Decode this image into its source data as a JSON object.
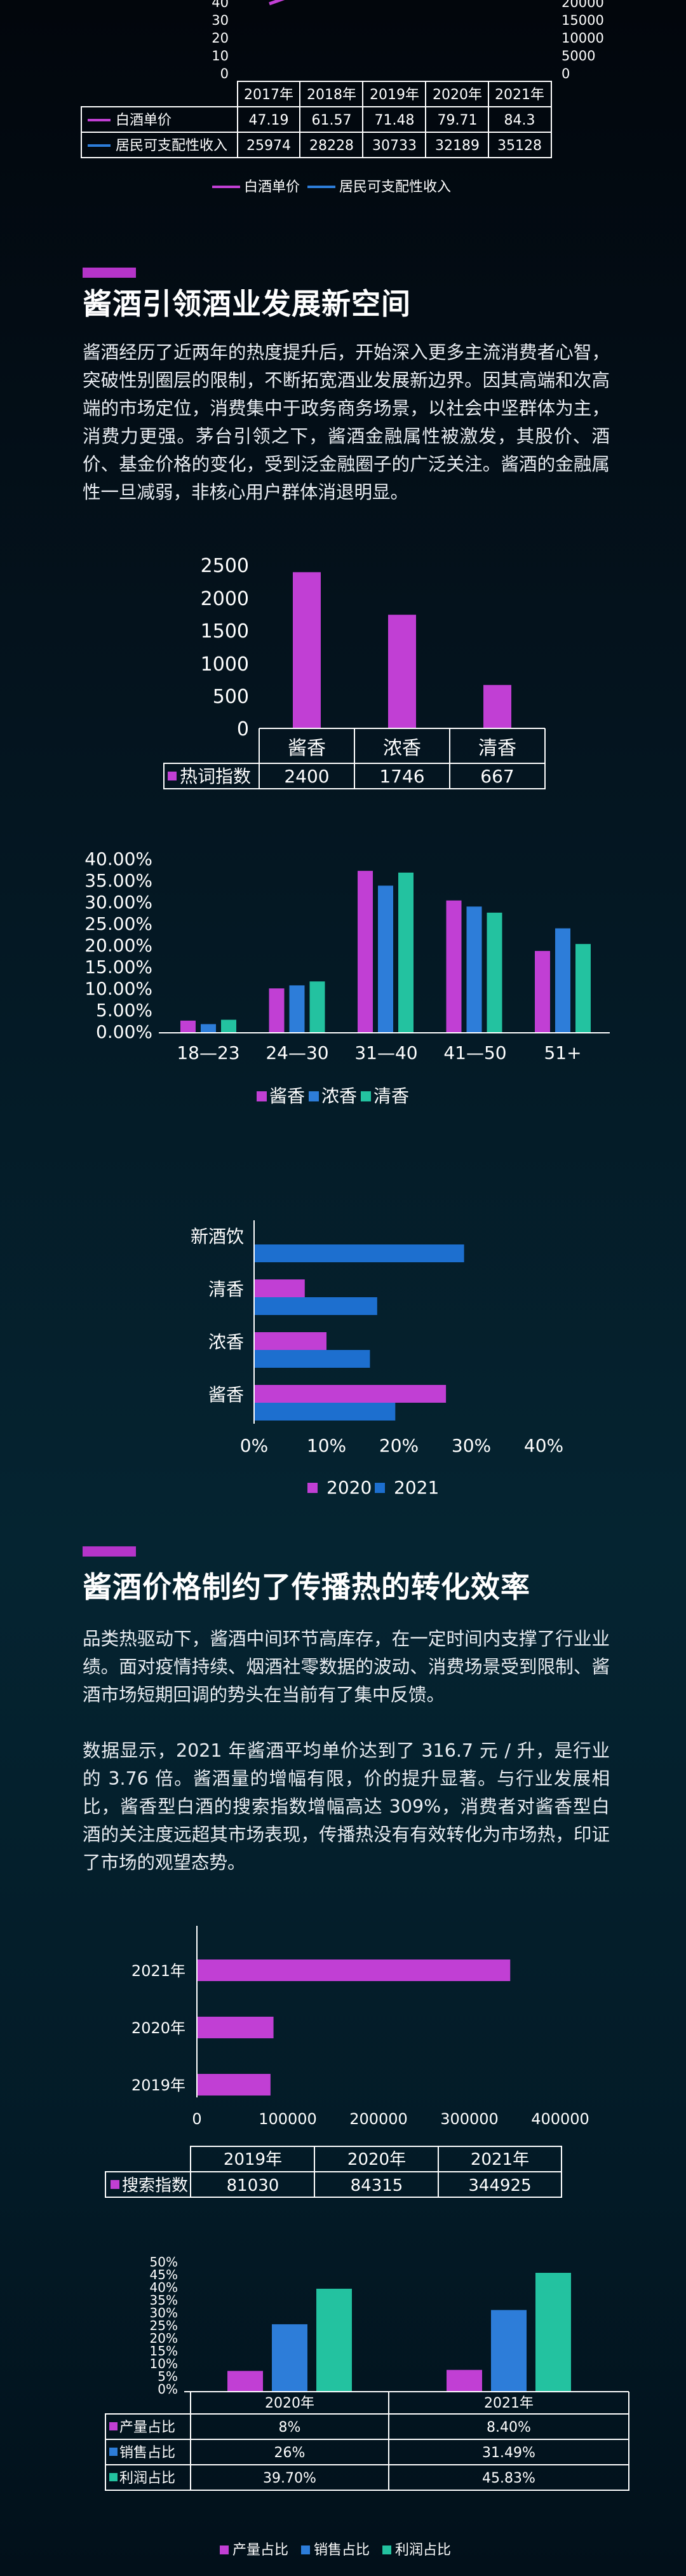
{
  "colors": {
    "magenta": "#c13fd4",
    "blue": "#2d7dd9",
    "teal": "#23c2a0",
    "accent": "#b534c9"
  },
  "charts": [
    {
      "type": "table",
      "title": "",
      "y_left_ticks": [
        "40",
        "30",
        "20",
        "10",
        "0"
      ],
      "y_right_ticks": [
        "20000",
        "15000",
        "10000",
        "5000",
        "0"
      ],
      "categories": [
        "2017年",
        "2018年",
        "2019年",
        "2020年",
        "2021年"
      ],
      "series": [
        {
          "name": "白酒单价",
          "values": [
            "47.19",
            "61.57",
            "71.48",
            "79.71",
            "84.3"
          ]
        },
        {
          "name": "居民可支配性收入",
          "values": [
            "25974",
            "28228",
            "30733",
            "32189",
            "35128"
          ]
        }
      ],
      "legend": [
        "白酒单价",
        "居民可支配性收入"
      ]
    },
    {
      "type": "bar",
      "y_ticks": [
        "2500",
        "2000",
        "1500",
        "1000",
        "500",
        "0"
      ],
      "ylim": [
        0,
        2500
      ],
      "categories": [
        "酱香",
        "浓香",
        "清香"
      ],
      "series": [
        {
          "name": "热词指数",
          "values": [
            2400,
            1746,
            667
          ]
        }
      ]
    },
    {
      "type": "bar",
      "y_ticks": [
        "40.00%",
        "35.00%",
        "30.00%",
        "25.00%",
        "20.00%",
        "15.00%",
        "10.00%",
        "5.00%",
        "0.00%"
      ],
      "ylim": [
        0,
        40
      ],
      "categories": [
        "18—23",
        "24—30",
        "31—40",
        "41—50",
        "51+"
      ],
      "series": [
        {
          "name": "酱香",
          "values": [
            2.8,
            10.2,
            37.2,
            30.4,
            18.8
          ]
        },
        {
          "name": "浓香",
          "values": [
            2.0,
            10.9,
            33.8,
            29.0,
            24.0
          ]
        },
        {
          "name": "清香",
          "values": [
            3.0,
            11.8,
            36.8,
            27.6,
            20.4
          ]
        }
      ]
    },
    {
      "type": "bar",
      "orientation": "horizontal",
      "categories": [
        "新酒饮",
        "清香",
        "浓香",
        "酱香"
      ],
      "x_ticks": [
        "0%",
        "10%",
        "20%",
        "30%",
        "40%"
      ],
      "xlim": [
        0,
        40
      ],
      "series": [
        {
          "name": "2020",
          "values": [
            0,
            7,
            10,
            26.5
          ]
        },
        {
          "name": "2021",
          "values": [
            29,
            17,
            16,
            19.5
          ]
        }
      ]
    },
    {
      "type": "bar",
      "orientation": "horizontal",
      "categories": [
        "2021年",
        "2020年",
        "2019年"
      ],
      "x_ticks": [
        "0",
        "100000",
        "200000",
        "300000",
        "400000"
      ],
      "xlim": [
        0,
        400000
      ],
      "table_header": [
        "2019年",
        "2020年",
        "2021年"
      ],
      "series": [
        {
          "name": "搜索指数",
          "values": [
            344925,
            84315,
            81030
          ],
          "table_values": [
            "81030",
            "84315",
            "344925"
          ]
        }
      ]
    },
    {
      "type": "bar",
      "y_ticks": [
        "50%",
        "45%",
        "40%",
        "35%",
        "30%",
        "25%",
        "20%",
        "15%",
        "10%",
        "5%",
        "0%"
      ],
      "ylim": [
        0,
        50
      ],
      "categories": [
        "2020年",
        "2021年"
      ],
      "series": [
        {
          "name": "产量占比",
          "values": [
            8,
            8.4
          ],
          "labels": [
            "8%",
            "8.40%"
          ]
        },
        {
          "name": "销售占比",
          "values": [
            26,
            31.49
          ],
          "labels": [
            "26%",
            "31.49%"
          ]
        },
        {
          "name": "利润占比",
          "values": [
            39.7,
            45.83
          ],
          "labels": [
            "39.70%",
            "45.83%"
          ]
        }
      ],
      "legend": [
        "产量占比",
        "销售占比",
        "利润占比"
      ]
    }
  ],
  "sections": [
    {
      "heading": "酱酒引领酒业发展新空间",
      "paragraphs": [
        "酱酒经历了近两年的热度提升后，开始深入更多主流消费者心智，突破性别圈层的限制，不断拓宽酒业发展新边界。因其高端和次高端的市场定位，消费集中于政务商务场景，以社会中坚群体为主，消费力更强。茅台引领之下，酱酒金融属性被激发，其股价、酒价、基金价格的变化，受到泛金融圈子的广泛关注。酱酒的金融属性一旦减弱，非核心用户群体消退明显。"
      ]
    },
    {
      "heading": "酱酒价格制约了传播热的转化效率",
      "paragraphs": [
        "品类热驱动下，酱酒中间环节高库存，在一定时间内支撑了行业业绩。面对疫情持续、烟酒社零数据的波动、消费场景受到限制、酱酒市场短期回调的势头在当前有了集中反馈。",
        "数据显示，2021 年酱酒平均单价达到了 316.7 元 / 升，是行业的 3.76 倍。酱酒量的增幅有限，价的提升显著。与行业发展相比，酱香型白酒的搜索指数增幅高达 309%，消费者对酱香型白酒的关注度远超其市场表现，传播热没有有效转化为市场热，印证了市场的观望态势。"
      ]
    }
  ]
}
